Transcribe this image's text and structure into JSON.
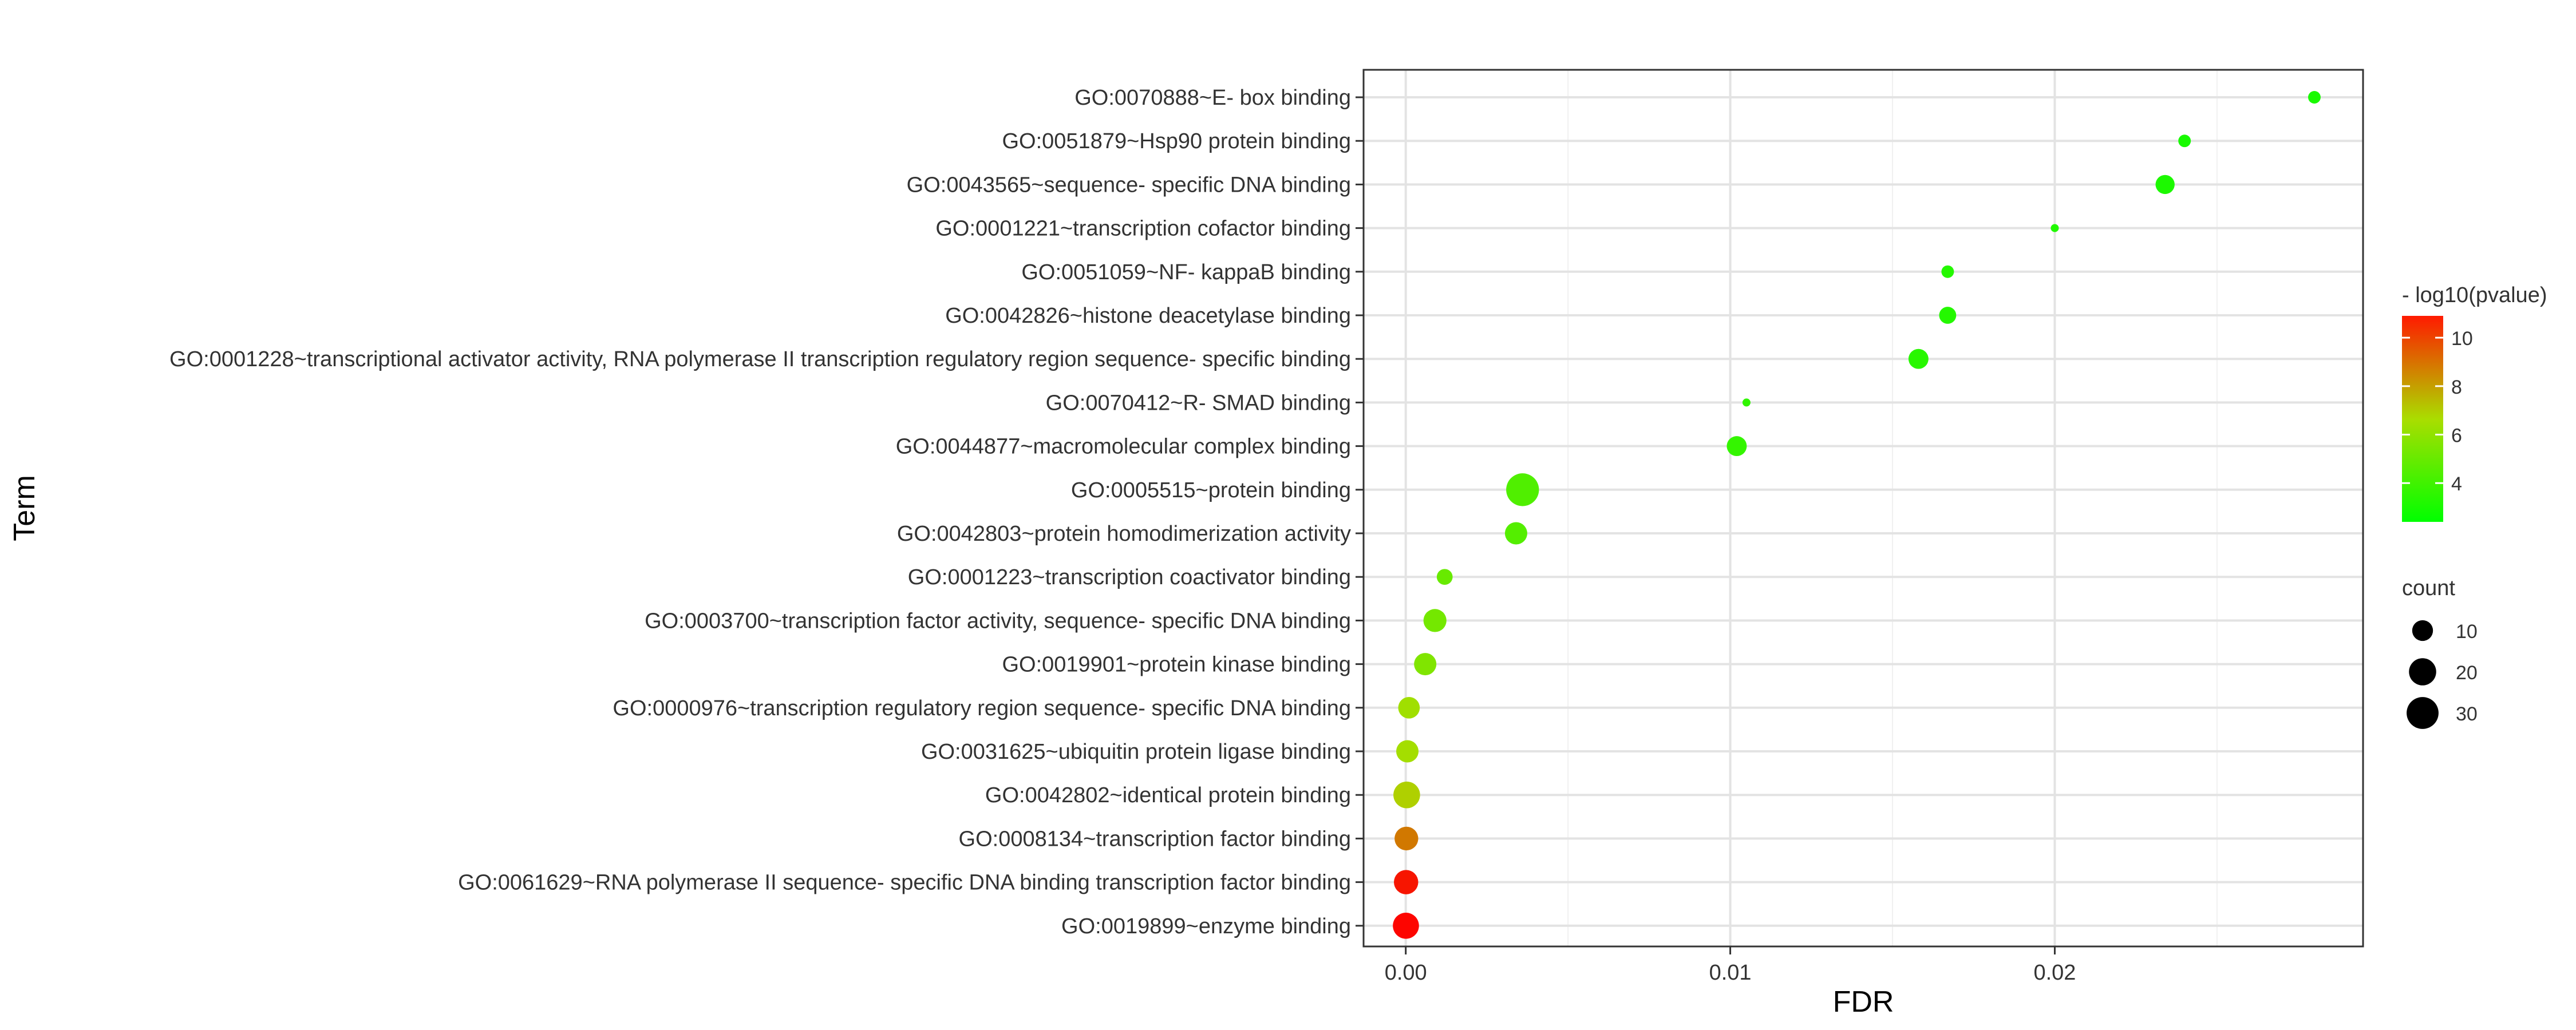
{
  "chart_data": {
    "type": "scatter",
    "xlabel": "FDR",
    "ylabel": "Term",
    "xlim": [
      -0.0013,
      0.0295
    ],
    "x_ticks": [
      0.0,
      0.01,
      0.02
    ],
    "x_tick_labels": [
      "0.00",
      "0.01",
      "0.02"
    ],
    "grid": true,
    "legend_position": "right",
    "color_legend": {
      "title": "- log10(pvalue)",
      "low_color": "#00ff00",
      "high_color": "#ff0000",
      "range": [
        2.4,
        10.9
      ],
      "ticks": [
        4,
        6,
        8,
        10
      ],
      "tick_labels": [
        "4",
        "6",
        "8",
        "10"
      ]
    },
    "size_legend": {
      "title": "count",
      "range": [
        2,
        33
      ],
      "values": [
        10,
        20,
        30
      ],
      "labels": [
        "10",
        "20",
        "30"
      ]
    },
    "points": [
      {
        "term": "GO:0070888~E- box binding",
        "fdr": 0.028,
        "count": 3,
        "neglog10p": 3.0
      },
      {
        "term": "GO:0051879~Hsp90 protein binding",
        "fdr": 0.024,
        "count": 3,
        "neglog10p": 3.0
      },
      {
        "term": "GO:0043565~sequence- specific DNA binding",
        "fdr": 0.0234,
        "count": 8,
        "neglog10p": 3.1
      },
      {
        "term": "GO:0001221~transcription cofactor binding",
        "fdr": 0.02,
        "count": 2,
        "neglog10p": 3.2
      },
      {
        "term": "GO:0051059~NF- kappaB binding",
        "fdr": 0.0167,
        "count": 3,
        "neglog10p": 3.3
      },
      {
        "term": "GO:0042826~histone deacetylase binding",
        "fdr": 0.0167,
        "count": 6,
        "neglog10p": 3.3
      },
      {
        "term": "GO:0001228~transcriptional activator activity, RNA polymerase II transcription regulatory region sequence- specific binding",
        "fdr": 0.0158,
        "count": 9,
        "neglog10p": 3.4
      },
      {
        "term": "GO:0070412~R- SMAD binding",
        "fdr": 0.0105,
        "count": 2,
        "neglog10p": 3.6
      },
      {
        "term": "GO:0044877~macromolecular complex binding",
        "fdr": 0.0102,
        "count": 9,
        "neglog10p": 3.7
      },
      {
        "term": "GO:0005515~protein binding",
        "fdr": 0.0036,
        "count": 32,
        "neglog10p": 4.4
      },
      {
        "term": "GO:0042803~protein homodimerization activity",
        "fdr": 0.0034,
        "count": 12,
        "neglog10p": 4.5
      },
      {
        "term": "GO:0001223~transcription coactivator binding",
        "fdr": 0.0012,
        "count": 5,
        "neglog10p": 5.0
      },
      {
        "term": "GO:0003700~transcription factor activity, sequence- specific DNA binding",
        "fdr": 0.0009,
        "count": 13,
        "neglog10p": 5.3
      },
      {
        "term": "GO:0019901~protein kinase binding",
        "fdr": 0.0006,
        "count": 12,
        "neglog10p": 5.6
      },
      {
        "term": "GO:0000976~transcription regulatory region sequence- specific DNA binding",
        "fdr": 0.0001,
        "count": 11,
        "neglog10p": 6.4
      },
      {
        "term": "GO:0031625~ubiquitin protein ligase binding",
        "fdr": 5e-05,
        "count": 12,
        "neglog10p": 6.5
      },
      {
        "term": "GO:0042802~identical protein binding",
        "fdr": 3e-05,
        "count": 19,
        "neglog10p": 6.9
      },
      {
        "term": "GO:0008134~transcription factor binding",
        "fdr": 2e-05,
        "count": 14,
        "neglog10p": 8.6
      },
      {
        "term": "GO:0061629~RNA polymerase II sequence- specific DNA binding transcription factor binding",
        "fdr": 1e-05,
        "count": 15,
        "neglog10p": 10.5
      },
      {
        "term": "GO:0019899~enzyme binding",
        "fdr": 5e-06,
        "count": 18,
        "neglog10p": 10.8
      }
    ]
  }
}
